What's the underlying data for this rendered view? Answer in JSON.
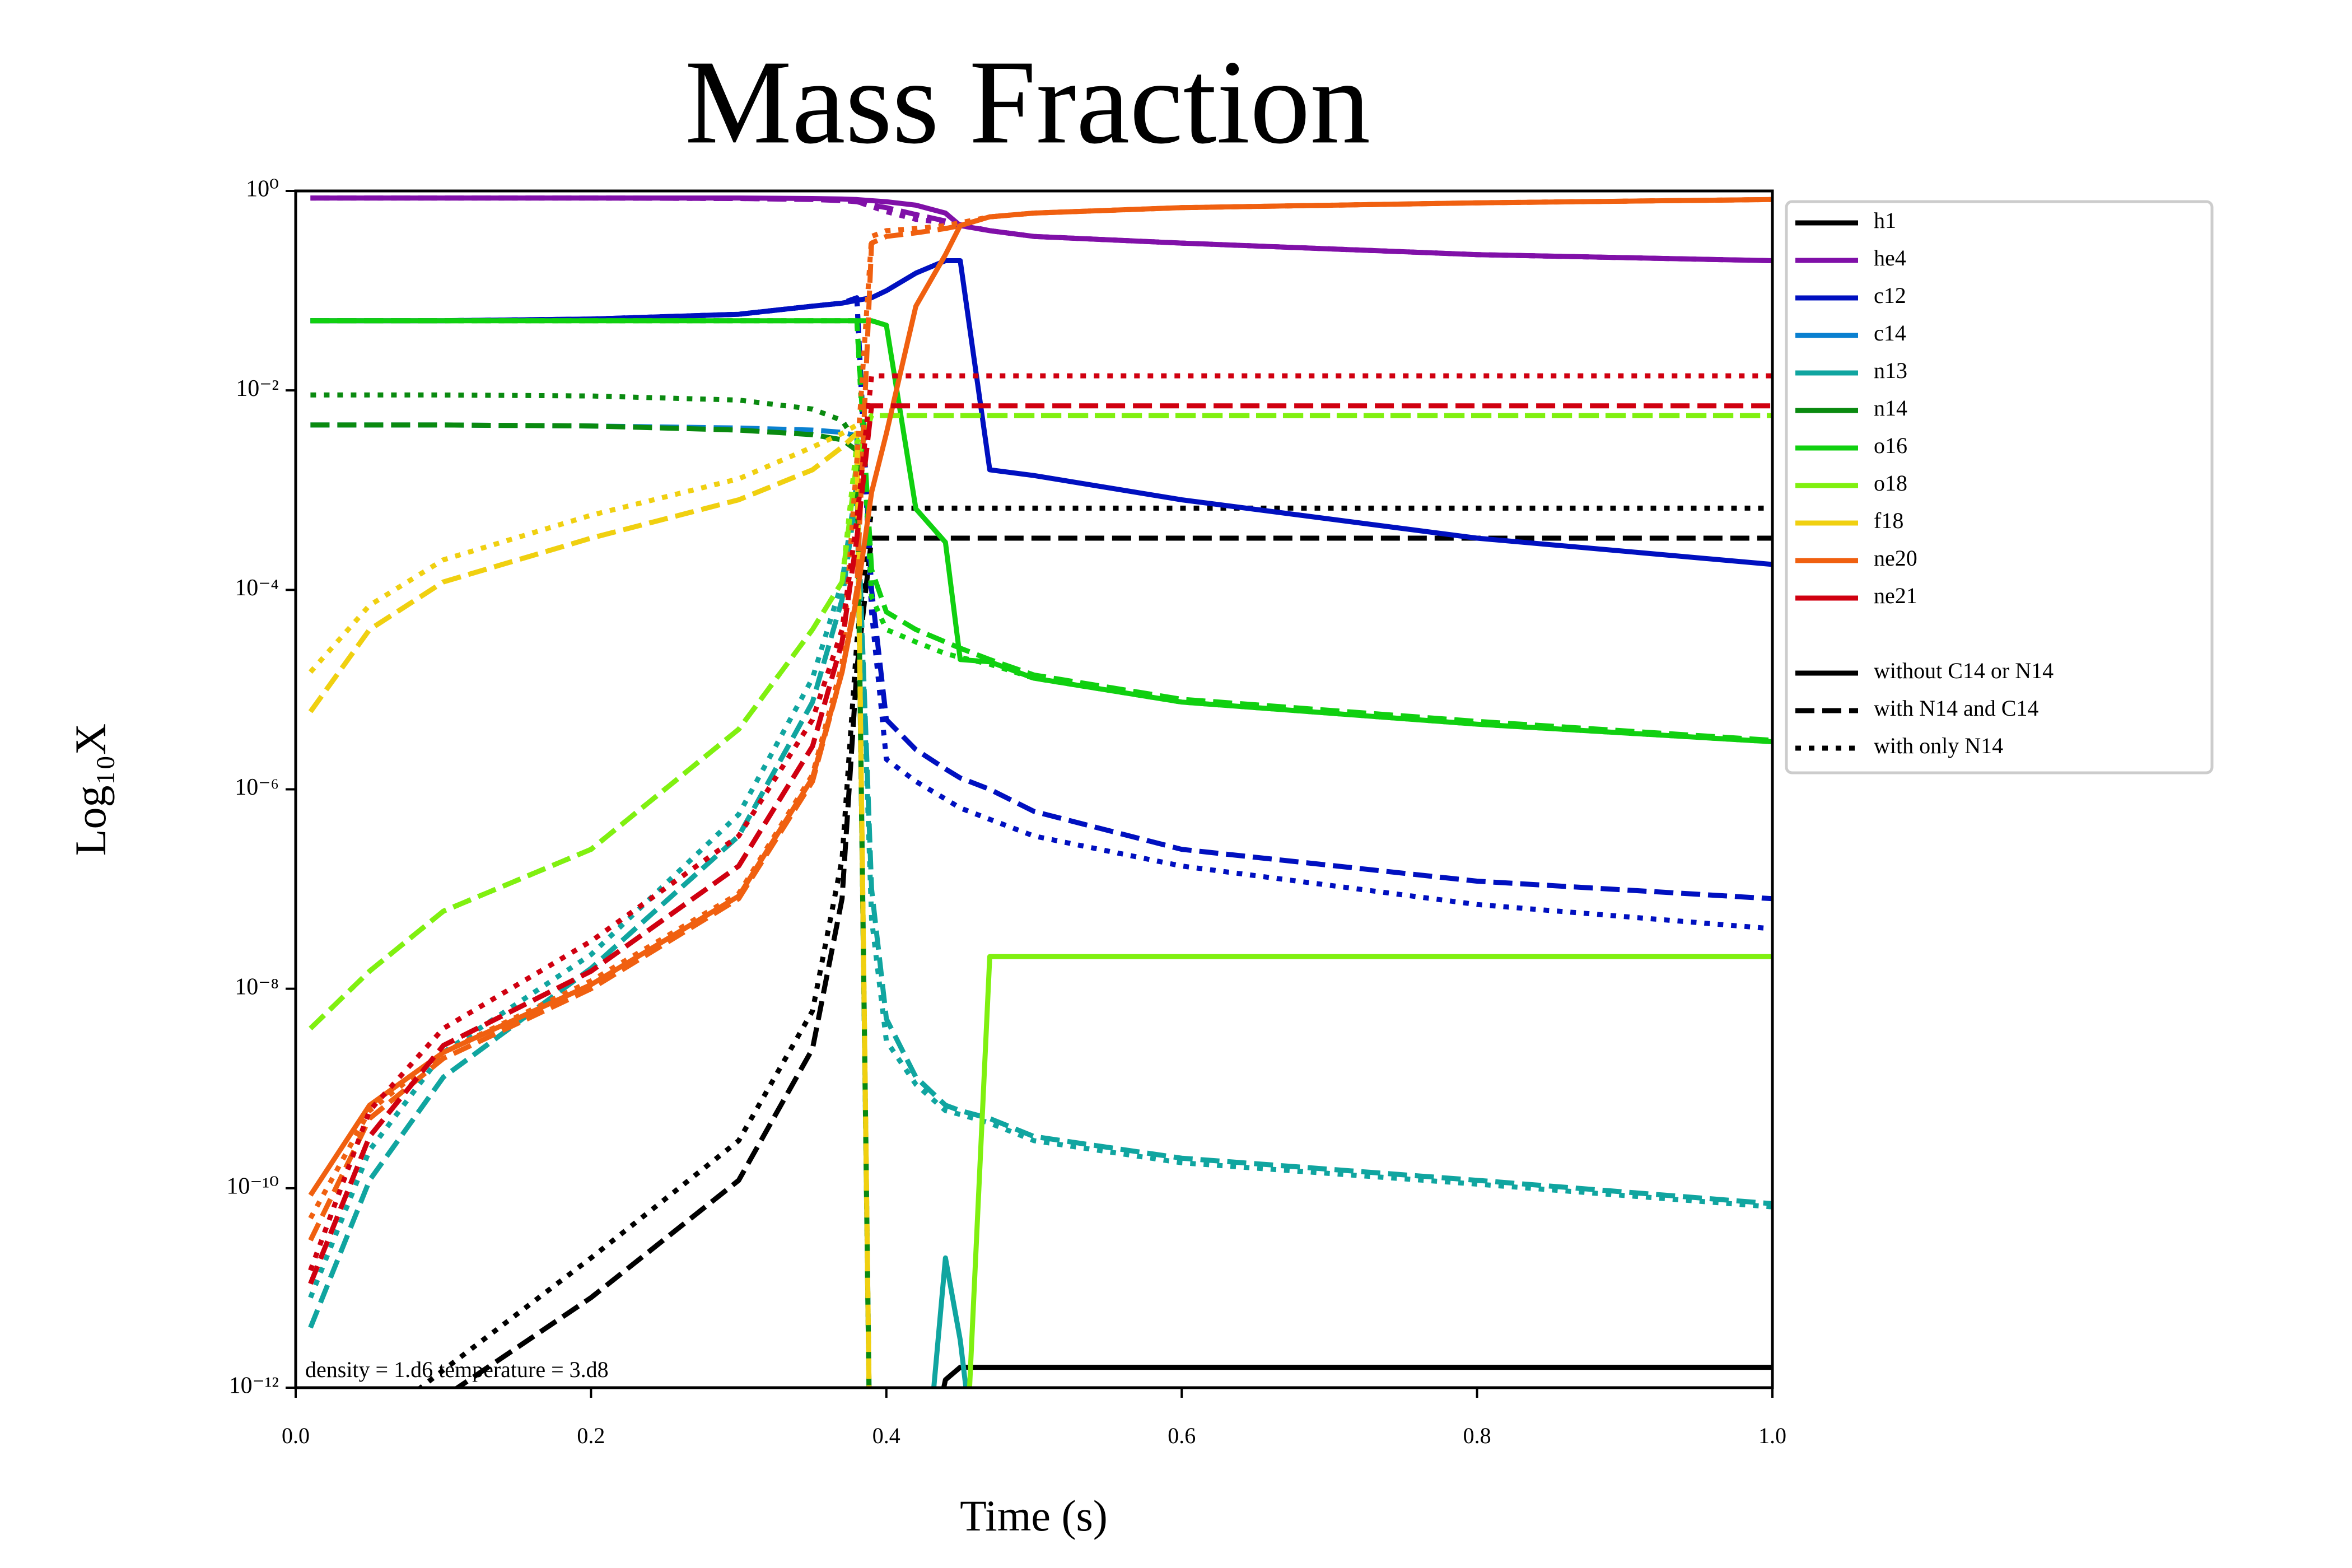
{
  "chart_data": {
    "type": "line",
    "title": "Mass Fraction",
    "xlabel": "Time (s)",
    "ylabel": "Log₁₀X",
    "annotation": "density = 1.d6 temperature = 3.d8",
    "log_y": true,
    "legend": "outside right",
    "xlim": [
      0,
      1
    ],
    "xticks": [
      {
        "value": 0,
        "label": "0.0"
      },
      0.2,
      0.4,
      0.6,
      0.8,
      {
        "value": 1,
        "label": "1.0"
      }
    ],
    "ylim": [
      1e-12,
      1
    ],
    "yticks": [
      {
        "value": 1e-12,
        "label": "10⁻¹²"
      },
      {
        "value": 1e-10,
        "label": "10⁻¹⁰"
      },
      {
        "value": 1e-08,
        "label": "10⁻⁸"
      },
      {
        "value": 1e-06,
        "label": "10⁻⁶"
      },
      {
        "value": 0.0001,
        "label": "10⁻⁴"
      },
      {
        "value": 0.01,
        "label": "10⁻²"
      },
      {
        "value": 1,
        "label": "10⁰"
      }
    ],
    "x": [
      0.01,
      0.05,
      0.1,
      0.2,
      0.3,
      0.35,
      0.37,
      0.38,
      0.39,
      0.4,
      0.42,
      0.44,
      0.45,
      0.47,
      0.5,
      0.6,
      0.8,
      1.0
    ],
    "styles": [
      {
        "name": "without C14 or N14",
        "dash": "solid"
      },
      {
        "name": "with N14 and C14",
        "dash": "dashed"
      },
      {
        "name": "with only N14",
        "dash": "dotted"
      }
    ],
    "series": [
      {
        "name": "h1",
        "color": "#000000",
        "lines": [
          [
            null,
            null,
            null,
            null,
            null,
            null,
            null,
            null,
            null,
            null,
            5e-14,
            1.2e-12,
            1.6e-12,
            1.6e-12,
            1.6e-12,
            1.6e-12,
            1.6e-12,
            1.6e-12
          ],
          [
            1e-14,
            1e-13,
            8e-13,
            8e-12,
            1.2e-10,
            2.5e-09,
            8e-08,
            1.6e-05,
            0.00033,
            0.00033,
            0.00033,
            0.00033,
            0.00033,
            0.00033,
            0.00033,
            0.00033,
            0.00033,
            0.00033
          ],
          [
            3e-14,
            4e-13,
            1.5e-12,
            2e-11,
            3e-10,
            6e-09,
            2e-07,
            3e-05,
            0.00066,
            0.00066,
            0.00066,
            0.00066,
            0.00066,
            0.00066,
            0.00066,
            0.00066,
            0.00066,
            0.00066
          ]
        ]
      },
      {
        "name": "he4",
        "color": "#8010a8",
        "lines": [
          [
            0.85,
            0.85,
            0.85,
            0.85,
            0.85,
            0.84,
            0.83,
            0.82,
            0.8,
            0.78,
            0.72,
            0.6,
            0.45,
            0.4,
            0.35,
            0.3,
            0.23,
            0.2
          ],
          [
            0.85,
            0.85,
            0.85,
            0.85,
            0.84,
            0.82,
            0.8,
            0.78,
            0.72,
            0.68,
            0.58,
            0.5,
            0.46,
            0.4,
            0.35,
            0.3,
            0.23,
            0.2
          ],
          [
            0.85,
            0.85,
            0.85,
            0.85,
            0.84,
            0.83,
            0.81,
            0.78,
            0.7,
            0.62,
            0.52,
            0.48,
            0.45,
            0.4,
            0.35,
            0.3,
            0.23,
            0.2
          ]
        ]
      },
      {
        "name": "c12",
        "color": "#0010c0",
        "lines": [
          [
            0.05,
            0.05,
            0.05,
            0.052,
            0.058,
            0.07,
            0.075,
            0.08,
            0.085,
            0.1,
            0.15,
            0.2,
            0.2,
            0.0016,
            0.0014,
            0.0008,
            0.00033,
            0.00018
          ],
          [
            0.05,
            0.05,
            0.05,
            0.052,
            0.058,
            0.07,
            0.075,
            0.085,
            0.0001,
            5e-06,
            2.5e-06,
            1.6e-06,
            1.3e-06,
            1e-06,
            6e-07,
            2.5e-07,
            1.2e-07,
            8e-08
          ],
          [
            0.05,
            0.05,
            0.05,
            0.052,
            0.058,
            0.07,
            0.075,
            0.085,
            6e-05,
            2e-06,
            1.2e-06,
            8e-07,
            6.5e-07,
            5e-07,
            3.4e-07,
            1.7e-07,
            7e-08,
            4e-08
          ]
        ]
      },
      {
        "name": "c14",
        "color": "#0a80d0",
        "lines": [
          null,
          [
            0.0045,
            0.0045,
            0.0045,
            0.0044,
            0.0042,
            0.004,
            0.0038,
            0.0035,
            1e-14,
            null,
            null,
            null,
            null,
            null,
            null,
            null,
            null,
            null
          ],
          null
        ]
      },
      {
        "name": "n13",
        "color": "#10a5a0",
        "lines": [
          [
            null,
            null,
            null,
            null,
            null,
            null,
            null,
            null,
            null,
            null,
            1e-14,
            2e-11,
            3e-12,
            1e-14,
            null,
            null,
            null,
            null
          ],
          [
            4e-12,
            1.2e-10,
            1.3e-09,
            1.6e-08,
            3.4e-07,
            7.5e-06,
            8e-05,
            0.001,
            1e-07,
            5e-09,
            1.3e-09,
            6.8e-10,
            6e-10,
            5e-10,
            3.3e-10,
            2e-10,
            1.2e-10,
            7e-11
          ],
          [
            8e-12,
            2.4e-10,
            2.3e-09,
            2.2e-08,
            5.6e-07,
            1.3e-05,
            0.00012,
            0.0012,
            5e-08,
            3e-09,
            1.1e-09,
            6e-10,
            5.5e-10,
            4.5e-10,
            3e-10,
            1.8e-10,
            1.1e-10,
            6.5e-11
          ]
        ]
      },
      {
        "name": "n14",
        "color": "#0a8a10",
        "lines": [
          null,
          [
            0.0045,
            0.0045,
            0.0045,
            0.0044,
            0.004,
            0.0036,
            0.0032,
            0.0025,
            1e-14,
            null,
            null,
            null,
            null,
            null,
            null,
            null,
            null,
            null
          ],
          [
            0.009,
            0.009,
            0.009,
            0.0088,
            0.008,
            0.0065,
            0.005,
            0.003,
            1e-14,
            null,
            null,
            null,
            null,
            null,
            null,
            null,
            null,
            null
          ]
        ]
      },
      {
        "name": "o16",
        "color": "#10d010",
        "lines": [
          [
            0.05,
            0.05,
            0.05,
            0.05,
            0.05,
            0.05,
            0.05,
            0.05,
            0.05,
            0.045,
            0.00065,
            0.0003,
            2e-05,
            1.9e-05,
            1.3e-05,
            7.5e-06,
            4.5e-06,
            3e-06
          ],
          [
            0.05,
            0.05,
            0.05,
            0.05,
            0.05,
            0.05,
            0.05,
            0.05,
            0.00016,
            6e-05,
            4e-05,
            3e-05,
            2.6e-05,
            2e-05,
            1.4e-05,
            8e-06,
            4.8e-06,
            3.1e-06
          ],
          [
            0.05,
            0.05,
            0.05,
            0.05,
            0.05,
            0.05,
            0.05,
            0.05,
            8.5e-05,
            4e-05,
            3e-05,
            2.3e-05,
            2.1e-05,
            1.8e-05,
            1.3e-05,
            7.5e-06,
            4.5e-06,
            3e-06
          ]
        ]
      },
      {
        "name": "o18",
        "color": "#80f010",
        "lines": [
          [
            null,
            null,
            null,
            null,
            null,
            null,
            null,
            null,
            null,
            null,
            null,
            null,
            1e-14,
            2.1e-08,
            2.1e-08,
            2.1e-08,
            2.1e-08,
            2.1e-08
          ],
          [
            4e-09,
            1.5e-08,
            6e-08,
            2.5e-07,
            4e-06,
            4e-05,
            0.00012,
            0.002,
            0.0056,
            0.0056,
            0.0056,
            0.0056,
            0.0056,
            0.0056,
            0.0056,
            0.0056,
            0.0056,
            0.0056
          ],
          [
            4e-09,
            1.5e-08,
            6e-08,
            2.5e-07,
            4e-06,
            4e-05,
            0.00012,
            0.003,
            0.0056,
            0.0056,
            0.0056,
            0.0056,
            0.0056,
            0.0056,
            0.0056,
            0.0056,
            0.0056,
            0.0056
          ]
        ]
      },
      {
        "name": "f18",
        "color": "#f0d010",
        "lines": [
          null,
          [
            6e-06,
            4e-05,
            0.00012,
            0.00033,
            0.0008,
            0.0016,
            0.0027,
            0.0037,
            1e-14,
            null,
            null,
            null,
            null,
            null,
            null,
            null,
            null,
            null
          ],
          [
            1.5e-05,
            7e-05,
            0.0002,
            0.00056,
            0.0013,
            0.0027,
            0.0037,
            0.0045,
            1e-14,
            null,
            null,
            null,
            null,
            null,
            null,
            null,
            null,
            null
          ]
        ]
      },
      {
        "name": "ne20",
        "color": "#f06010",
        "lines": [
          [
            8.5e-11,
            6.8e-10,
            2.3e-09,
            1.1e-08,
            8.5e-08,
            1.3e-06,
            1.5e-05,
            8.5e-05,
            0.00095,
            0.0037,
            0.07,
            0.23,
            0.45,
            0.55,
            0.6,
            0.68,
            0.76,
            0.82
          ],
          [
            3e-11,
            5e-10,
            2e-09,
            1e-08,
            8e-08,
            1.2e-06,
            1.5e-05,
            0.0001,
            0.3,
            0.35,
            0.38,
            0.42,
            0.45,
            0.55,
            0.6,
            0.68,
            0.76,
            0.82
          ],
          [
            5e-11,
            6e-10,
            2.3e-09,
            1.2e-08,
            9e-08,
            1.4e-06,
            1.8e-05,
            0.002,
            0.35,
            0.4,
            0.42,
            0.45,
            0.48,
            0.55,
            0.6,
            0.68,
            0.76,
            0.82
          ]
        ]
      },
      {
        "name": "ne21",
        "color": "#d00010",
        "lines": [
          null,
          [
            1.1e-11,
            3.3e-10,
            2.7e-09,
            1.5e-08,
            1.7e-07,
            2.7e-06,
            3e-05,
            0.00033,
            0.007,
            0.007,
            0.007,
            0.007,
            0.007,
            0.007,
            0.007,
            0.007,
            0.007,
            0.007
          ],
          [
            1.5e-11,
            6e-10,
            4e-09,
            3e-08,
            3.4e-07,
            5e-06,
            4e-05,
            0.0005,
            0.014,
            0.014,
            0.014,
            0.014,
            0.014,
            0.014,
            0.014,
            0.014,
            0.014,
            0.014
          ]
        ]
      }
    ]
  }
}
